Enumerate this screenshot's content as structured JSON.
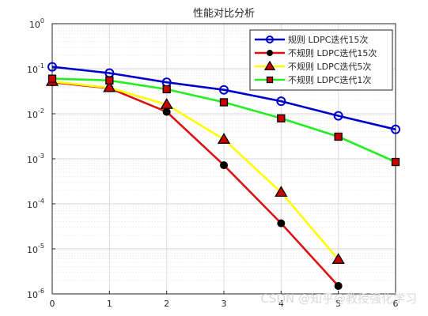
{
  "watermark": "CSDN @知乎@教授强化学习",
  "chart_data": {
    "type": "line",
    "title": "性能对比分析",
    "xlabel": "",
    "ylabel": "",
    "yscale": "log",
    "xlim": [
      0,
      6
    ],
    "ylim": [
      1e-06,
      1
    ],
    "x_ticks": [
      "0",
      "1",
      "2",
      "3",
      "4",
      "5",
      "6"
    ],
    "grid": true,
    "legend_position": "top-right",
    "series": [
      {
        "name": "规则 LDPC迭代15次",
        "color": "#0000cc",
        "marker": "circle-open",
        "x": [
          0,
          1,
          2,
          3,
          4,
          5,
          6
        ],
        "y": [
          0.11,
          0.08,
          0.05,
          0.034,
          0.019,
          0.009,
          0.0045
        ]
      },
      {
        "name": "不规则 LDPC迭代15次",
        "color": "#dd1111",
        "marker": "circle-filled",
        "x": [
          0,
          1,
          2,
          3,
          4,
          5
        ],
        "y": [
          0.05,
          0.037,
          0.011,
          0.00072,
          3.7e-05,
          1.5e-06
        ]
      },
      {
        "name": "不规则 LDPC迭代5次",
        "color": "#ffff00",
        "marker": "triangle",
        "x": [
          0,
          1,
          2,
          3,
          4,
          5
        ],
        "y": [
          0.052,
          0.038,
          0.016,
          0.0027,
          0.00018,
          5.8e-06
        ]
      },
      {
        "name": "不规则 LDPC迭代1次",
        "color": "#22ee22",
        "marker": "square",
        "x": [
          0,
          1,
          2,
          3,
          4,
          5,
          6
        ],
        "y": [
          0.06,
          0.055,
          0.035,
          0.018,
          0.0079,
          0.0031,
          0.00085
        ]
      }
    ]
  }
}
